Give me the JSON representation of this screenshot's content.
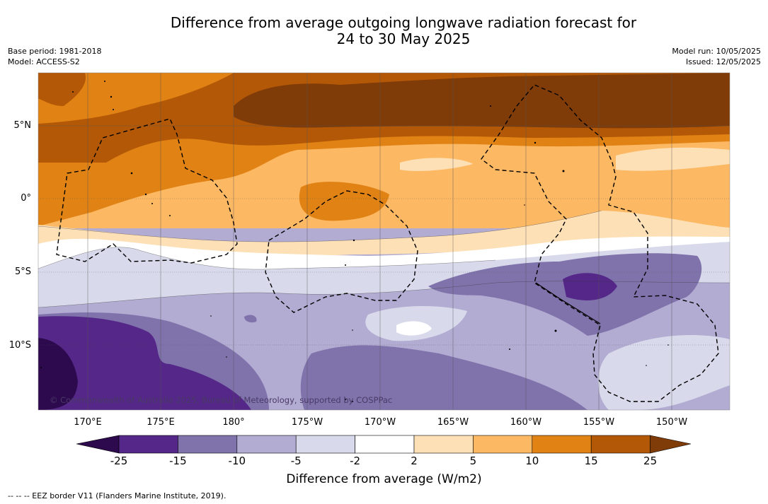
{
  "title_line1": "Difference from average outgoing longwave radiation forecast for",
  "title_line2": "24 to 30 May 2025",
  "meta_left": {
    "base_period": "Base period: 1981-2018",
    "model": "Model: ACCESS-S2"
  },
  "meta_right": {
    "model_run": "Model run: 10/05/2025",
    "issued": "Issued: 12/05/2025"
  },
  "lat_labels": [
    "5°N",
    "0°",
    "5°S",
    "10°S"
  ],
  "lon_labels": [
    "170°E",
    "175°E",
    "180°",
    "175°W",
    "170°W",
    "165°W",
    "160°W",
    "155°W",
    "150°W"
  ],
  "colorbar": {
    "label": "Difference from average (W/m2)",
    "ticks": [
      "-25",
      "-15",
      "-10",
      "-5",
      "-2",
      "2",
      "5",
      "10",
      "15",
      "25"
    ],
    "colors": [
      "#2d0a4e",
      "#542788",
      "#8073ac",
      "#b2abd2",
      "#d8daeb",
      "#ffffff",
      "#fee0b6",
      "#fdb863",
      "#e08214",
      "#b35806",
      "#7f3b08"
    ]
  },
  "copyright": "© Commonwealth of Australia 2025, Bureau of Meteorology, supported by COSPPac",
  "legend_note": "-- -- -- EEZ border V11 (Flanders Marine Institute, 2019)."
}
